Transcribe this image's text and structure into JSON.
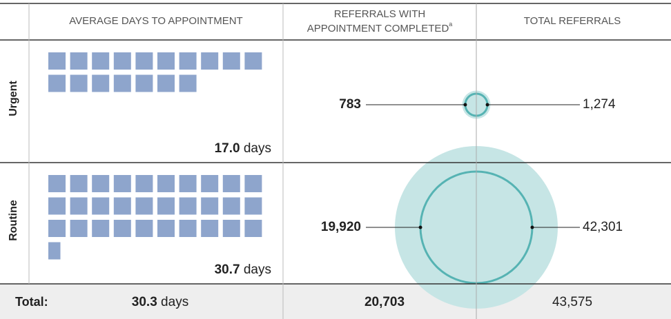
{
  "header": {
    "columns": [
      [
        "AVERAGE DAYS TO APPOINTMENT"
      ],
      [
        "REFERRALS WITH",
        "APPOINTMENT COMPLETED"
      ],
      [
        "TOTAL REFERRALS"
      ]
    ],
    "footnote_marker": "a"
  },
  "unit": "days",
  "rows": [
    {
      "label": "Urgent",
      "avg_days": 17.0,
      "avg_days_label": "17.0",
      "completed": 783,
      "total": 1274,
      "total_label": "1,274"
    },
    {
      "label": "Routine",
      "avg_days": 30.7,
      "avg_days_label": "30.7",
      "completed": 19920,
      "completed_label": "19,920",
      "total": 42301,
      "total_label": "42,301"
    }
  ],
  "total": {
    "label": "Total:",
    "avg_days": 30.3,
    "avg_days_label": "30.3",
    "completed": 20703,
    "completed_label": "20,703",
    "total": 43575,
    "total_label": "43,575"
  }
}
